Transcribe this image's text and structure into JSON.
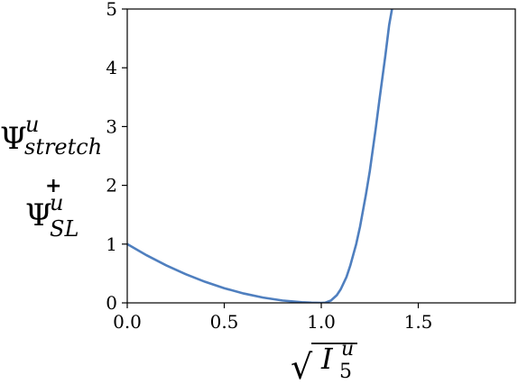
{
  "chart_data": {
    "type": "line",
    "x_ticks": [
      "0.0",
      "0.5",
      "1.0",
      "1.5"
    ],
    "y_ticks": [
      "0",
      "1",
      "2",
      "3",
      "4",
      "5"
    ],
    "xlim": [
      0,
      2
    ],
    "ylim": [
      0,
      5
    ],
    "grid": false,
    "legend": "none",
    "line_color": "#4f7fbf",
    "xlabel": {
      "sqrt": "√",
      "base": "I",
      "sub": "5",
      "sup": "u"
    },
    "ylabel": {
      "top_base": "Ψ",
      "top_sup": "u",
      "top_sub": "stretch",
      "plus": "+",
      "bottom_base": "Ψ",
      "bottom_sup": "u",
      "bottom_sub": "SL"
    },
    "series": [
      {
        "x": [
          0.0,
          0.1,
          0.2,
          0.3,
          0.4,
          0.5,
          0.6,
          0.7,
          0.8,
          0.9,
          0.95,
          1.0,
          1.02,
          1.05,
          1.08,
          1.1,
          1.13,
          1.15,
          1.18,
          1.2,
          1.23,
          1.25,
          1.28,
          1.3,
          1.33,
          1.35,
          1.37
        ],
        "y": [
          1.0,
          0.81,
          0.64,
          0.49,
          0.36,
          0.25,
          0.16,
          0.09,
          0.04,
          0.01,
          0.003,
          0.0,
          0.003,
          0.04,
          0.13,
          0.23,
          0.44,
          0.64,
          1.0,
          1.3,
          1.84,
          2.24,
          2.95,
          3.46,
          4.2,
          4.73,
          5.1
        ]
      }
    ]
  }
}
